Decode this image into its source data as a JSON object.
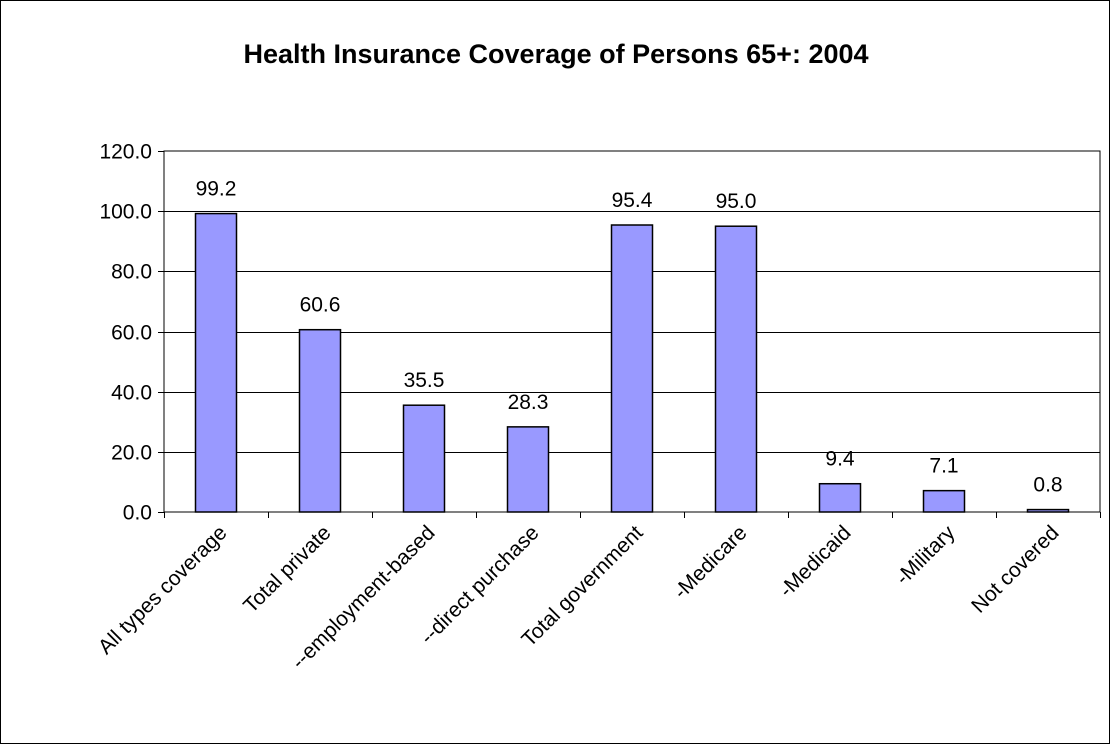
{
  "chart_data": {
    "type": "bar",
    "title": "Health Insurance Coverage of Persons 65+: 2004",
    "xlabel": "",
    "ylabel": "",
    "ylim": [
      0,
      120
    ],
    "y_ticks": [
      "0.0",
      "20.0",
      "40.0",
      "60.0",
      "80.0",
      "100.0",
      "120.0"
    ],
    "y_tick_values": [
      0,
      20,
      40,
      60,
      80,
      100,
      120
    ],
    "categories": [
      "All types coverage",
      "Total private",
      "--employment-based",
      "--direct purchase",
      "Total government",
      "-Medicare",
      "-Medicaid",
      "-Military",
      "Not covered"
    ],
    "values": [
      99.2,
      60.6,
      35.5,
      28.3,
      95.4,
      95.0,
      9.4,
      7.1,
      0.8
    ],
    "value_labels": [
      "99.2",
      "60.6",
      "35.5",
      "28.3",
      "95.4",
      "95.0",
      "9.4",
      "7.1",
      "0.8"
    ],
    "grid": true,
    "legend": "none",
    "colors": {
      "bar_fill": "#9999ff",
      "bar_stroke": "#000000",
      "grid": "#000000",
      "axis": "#000000"
    }
  }
}
